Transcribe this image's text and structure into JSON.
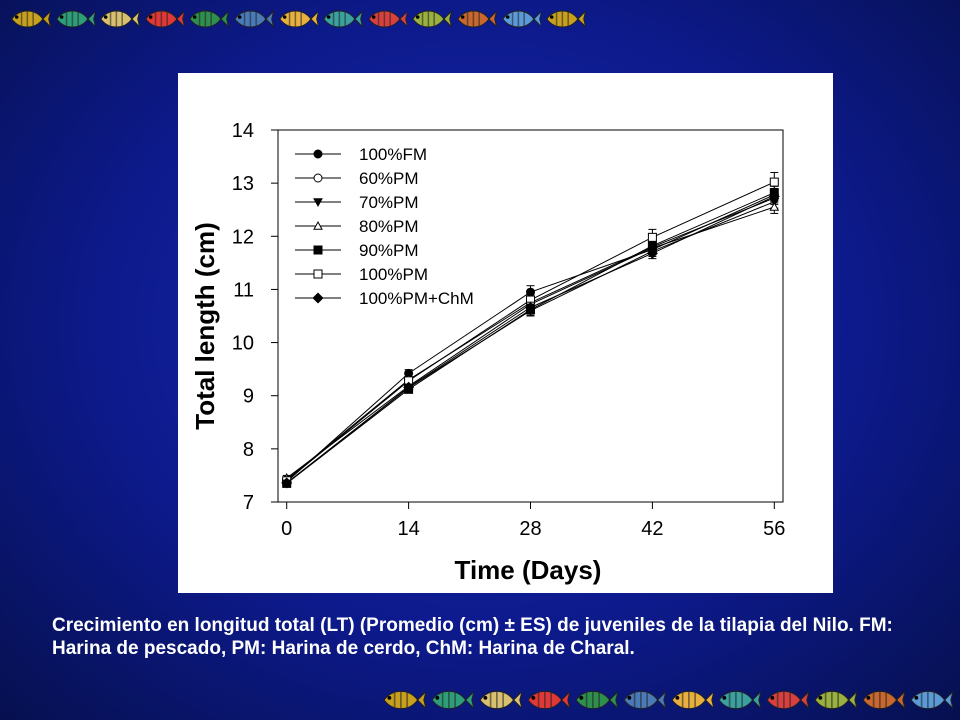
{
  "caption": "Crecimiento en longitud total (LT) (Promedio (cm) ± ES) de juveniles de la tilapia del Nilo. FM: Harina de pescado, PM: Harina de cerdo, ChM: Harina de Charal.",
  "decor": {
    "top_fish_icons": [
      "fish-icon",
      "fish-icon",
      "fish-icon",
      "fish-icon",
      "fish-icon",
      "fish-icon",
      "fish-icon",
      "fish-icon",
      "fish-icon",
      "fish-icon",
      "fish-icon",
      "fish-icon",
      "fish-icon"
    ],
    "bottom_fish_icons": [
      "fish-icon",
      "fish-icon",
      "fish-icon",
      "fish-icon",
      "fish-icon",
      "fish-icon",
      "fish-icon",
      "fish-icon",
      "fish-icon",
      "fish-icon",
      "fish-icon",
      "fish-icon"
    ],
    "fish_colors": [
      "#c8a020",
      "#2e9e7a",
      "#d8c070",
      "#e03838",
      "#2f8f4f",
      "#4a7ab8",
      "#e8b040",
      "#3aa0a0",
      "#d84040",
      "#9ab040",
      "#c86830",
      "#5a9ad8"
    ],
    "background": "#0d1a8c"
  },
  "chart_data": {
    "type": "line",
    "title": "",
    "xlabel": "Time (Days)",
    "ylabel": "Total length (cm)",
    "x": [
      0,
      14,
      28,
      42,
      56
    ],
    "xticks": [
      "0",
      "14",
      "28",
      "42",
      "56"
    ],
    "yticks": [
      "7",
      "8",
      "9",
      "10",
      "11",
      "12",
      "13",
      "14"
    ],
    "xlim": [
      -1,
      57
    ],
    "ylim": [
      7,
      14
    ],
    "grid": false,
    "legend_position": "top-left",
    "series": [
      {
        "name": "100%FM",
        "marker": "circle-filled",
        "values": [
          7.38,
          9.42,
          10.95,
          11.75,
          12.78
        ],
        "errors": [
          0.05,
          0.07,
          0.12,
          0.1,
          0.12
        ]
      },
      {
        "name": "60%PM",
        "marker": "circle-open",
        "values": [
          7.42,
          9.3,
          10.75,
          11.8,
          12.72
        ],
        "errors": [
          0.05,
          0.06,
          0.1,
          0.1,
          0.12
        ]
      },
      {
        "name": "70%PM",
        "marker": "triangle-down-filled",
        "values": [
          7.35,
          9.15,
          10.6,
          11.72,
          12.65
        ],
        "errors": [
          0.05,
          0.06,
          0.1,
          0.1,
          0.12
        ]
      },
      {
        "name": "80%PM",
        "marker": "triangle-up-open",
        "values": [
          7.45,
          9.18,
          10.72,
          11.78,
          12.55
        ],
        "errors": [
          0.05,
          0.06,
          0.1,
          0.1,
          0.12
        ]
      },
      {
        "name": "90%PM",
        "marker": "square-filled",
        "values": [
          7.35,
          9.12,
          10.62,
          11.82,
          12.82
        ],
        "errors": [
          0.05,
          0.06,
          0.1,
          0.1,
          0.12
        ]
      },
      {
        "name": "100%PM",
        "marker": "square-open",
        "values": [
          7.4,
          9.28,
          10.8,
          11.98,
          13.02
        ],
        "errors": [
          0.05,
          0.06,
          0.1,
          0.15,
          0.18
        ]
      },
      {
        "name": "100%PM+ChM",
        "marker": "diamond-filled",
        "values": [
          7.36,
          9.16,
          10.66,
          11.68,
          12.75
        ],
        "errors": [
          0.05,
          0.06,
          0.1,
          0.1,
          0.12
        ]
      }
    ]
  }
}
